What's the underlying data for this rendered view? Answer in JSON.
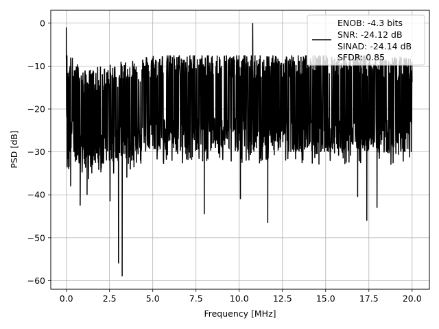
{
  "chart_data": {
    "type": "line",
    "title": "",
    "xlabel": "Frequency [MHz]",
    "ylabel": "PSD [dB]",
    "xlim": [
      -0.9,
      21.0
    ],
    "ylim": [
      -62,
      3
    ],
    "x_ticks": [
      0.0,
      2.5,
      5.0,
      7.5,
      10.0,
      12.5,
      15.0,
      17.5,
      20.0
    ],
    "x_tick_labels": [
      "0.0",
      "2.5",
      "5.0",
      "7.5",
      "10.0",
      "12.5",
      "15.0",
      "17.5",
      "20.0"
    ],
    "y_ticks": [
      0,
      -10,
      -20,
      -30,
      -40,
      -50,
      -60
    ],
    "y_tick_labels": [
      "0",
      "−10",
      "−20",
      "−30",
      "−40",
      "−50",
      "−60"
    ],
    "grid": true,
    "legend_position": "top-right",
    "legend_lines": [
      "ENOB: -4.3 bits",
      "SNR: -24.12 dB",
      "SINAD: -24.14 dB",
      "SFDR: 0.85"
    ],
    "series": [
      {
        "color": "#000000",
        "x_range": [
          0.0,
          20.0
        ],
        "trend": [
          [
            0.0,
            -1
          ],
          [
            0.05,
            -22
          ],
          [
            0.2,
            -17
          ],
          [
            1.0,
            -21
          ],
          [
            2.0,
            -20
          ],
          [
            3.0,
            -19
          ],
          [
            4.0,
            -18
          ],
          [
            5.0,
            -17
          ],
          [
            7.5,
            -17
          ],
          [
            10.0,
            -17
          ],
          [
            12.5,
            -17
          ],
          [
            15.0,
            -17
          ],
          [
            17.5,
            -17
          ],
          [
            20.0,
            -18
          ]
        ],
        "notable_points": [
          {
            "x": 0.0,
            "y": -1
          },
          {
            "x": 0.13,
            "y": -34
          },
          {
            "x": 0.25,
            "y": -38
          },
          {
            "x": 0.8,
            "y": -42.5
          },
          {
            "x": 1.2,
            "y": -40
          },
          {
            "x": 2.53,
            "y": -41.5
          },
          {
            "x": 3.02,
            "y": -56
          },
          {
            "x": 3.23,
            "y": -59
          },
          {
            "x": 3.5,
            "y": -36
          },
          {
            "x": 7.98,
            "y": -44.5
          },
          {
            "x": 10.07,
            "y": -41
          },
          {
            "x": 10.78,
            "y": 0
          },
          {
            "x": 11.65,
            "y": -46.5
          },
          {
            "x": 16.85,
            "y": -40.5
          },
          {
            "x": 17.38,
            "y": -46
          },
          {
            "x": 17.97,
            "y": -43
          }
        ]
      }
    ]
  }
}
